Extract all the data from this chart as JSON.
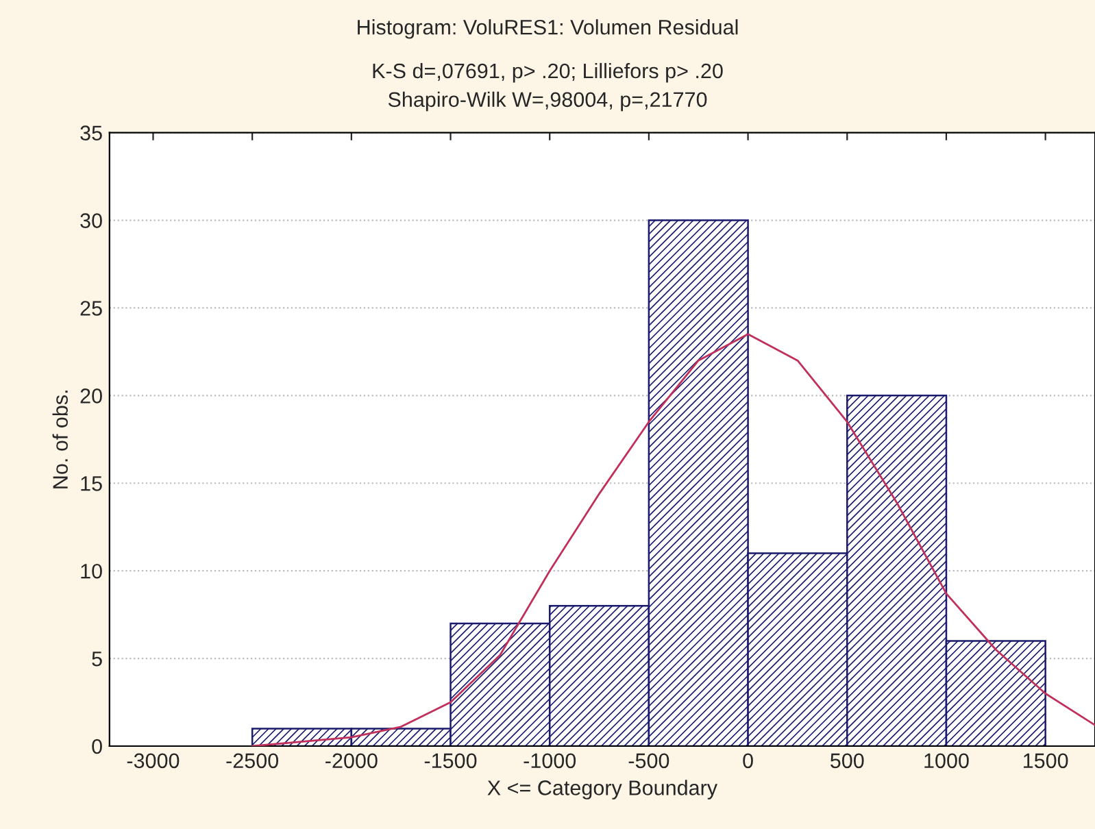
{
  "chart_data": {
    "type": "histogram",
    "title": "Histogram: VoluRES1: Volumen Residual",
    "subtitle": "K-S d=,07691, p> .20; Lilliefors p> .20\nShapiro-Wilk W=,98004, p=,21770",
    "xlabel": "X <= Category Boundary",
    "ylabel": "No. of obs.",
    "bins": [
      -2500,
      -2000,
      -1500,
      -1000,
      -500,
      0,
      500,
      1000,
      1500
    ],
    "values": [
      1,
      1,
      7,
      8,
      30,
      11,
      20,
      6
    ],
    "color": "#1a1a6e",
    "series": [
      {
        "type": "line",
        "color": "#c0305a",
        "x": [
          -2500,
          -2000,
          -1750,
          -1500,
          -1250,
          -1000,
          -750,
          -500,
          -250,
          0,
          250,
          500,
          750,
          1000,
          1250,
          1500,
          1750
        ],
        "values": [
          0,
          0.5,
          1.1,
          2.5,
          5.2,
          10,
          14.4,
          18.5,
          22,
          23.5,
          22,
          18.5,
          13.9,
          8.7,
          5.5,
          3,
          1.2
        ]
      }
    ],
    "xlim": [
      -3220,
      1750
    ],
    "xticks": [
      -3000,
      -2500,
      -2000,
      -1500,
      -1000,
      -500,
      0,
      500,
      1000,
      1500
    ],
    "ylim": [
      0,
      35
    ],
    "yticks": [
      0,
      5,
      10,
      15,
      20,
      25,
      30,
      35
    ],
    "grid": "y"
  }
}
